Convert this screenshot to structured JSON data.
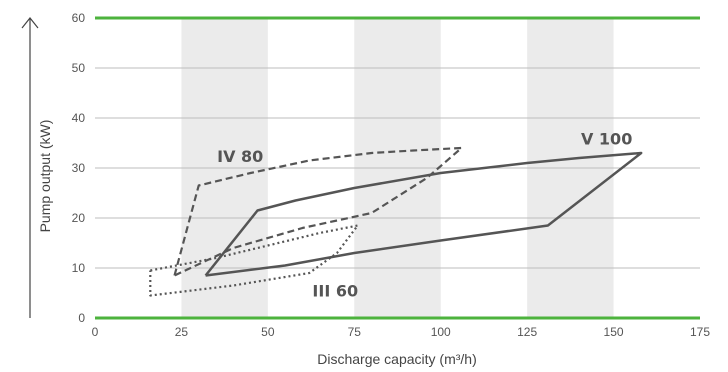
{
  "chart_data": {
    "type": "line",
    "xlabel": "Discharge capacity (m³/h)",
    "ylabel": "Pump output (kW)",
    "xlim": [
      0,
      175
    ],
    "ylim": [
      0,
      60
    ],
    "xticks": [
      "0",
      "25",
      "50",
      "75",
      "100",
      "125",
      "150",
      "175"
    ],
    "yticks": [
      "0",
      "10",
      "20",
      "30",
      "40",
      "50",
      "60"
    ],
    "grid": "horizontal",
    "shaded_bands": [
      [
        25,
        50
      ],
      [
        75,
        100
      ],
      [
        125,
        150
      ]
    ],
    "boundary_color": "#4db33d",
    "series_color": "#555555",
    "series": [
      {
        "name": "V 100",
        "style": "solid",
        "points": [
          [
            32,
            8.5
          ],
          [
            47,
            21.5
          ],
          [
            58,
            23.5
          ],
          [
            75,
            26
          ],
          [
            100,
            29
          ],
          [
            125,
            31
          ],
          [
            140,
            32
          ],
          [
            158,
            33
          ],
          [
            131,
            18.5
          ],
          [
            100,
            15.5
          ],
          [
            75,
            13
          ],
          [
            55,
            10.5
          ],
          [
            32,
            8.5
          ]
        ]
      },
      {
        "name": "IV 80",
        "style": "dashed",
        "points": [
          [
            23,
            8.5
          ],
          [
            30,
            26.5
          ],
          [
            45,
            29
          ],
          [
            62,
            31.5
          ],
          [
            80,
            33
          ],
          [
            92,
            33.5
          ],
          [
            106,
            34
          ],
          [
            96,
            28
          ],
          [
            80,
            21
          ],
          [
            60,
            18
          ],
          [
            40,
            14
          ],
          [
            23,
            8.5
          ]
        ]
      },
      {
        "name": "III 60",
        "style": "dotted",
        "points": [
          [
            16,
            9.5
          ],
          [
            35,
            12
          ],
          [
            50,
            14.5
          ],
          [
            65,
            17
          ],
          [
            76,
            18.5
          ],
          [
            70,
            13
          ],
          [
            62,
            9
          ],
          [
            40,
            6.5
          ],
          [
            16,
            4.5
          ],
          [
            16,
            9.5
          ]
        ]
      }
    ],
    "series_labels": [
      {
        "text": "V 100",
        "x": 148,
        "y": 34.7
      },
      {
        "text": "IV 80",
        "x": 42,
        "y": 31.2
      },
      {
        "text": "III 60",
        "x": 69.5,
        "y": 4.3
      }
    ]
  }
}
